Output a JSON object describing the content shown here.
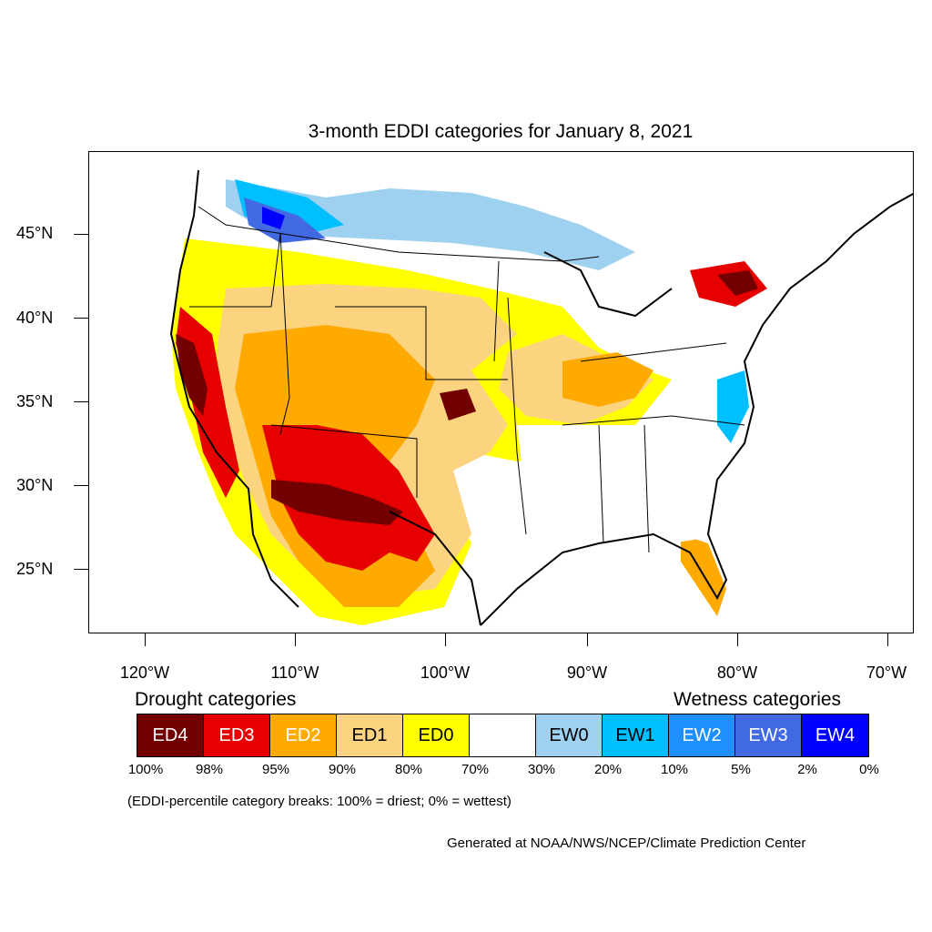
{
  "title": "3-month EDDI categories for January 8, 2021",
  "lat_labels": [
    "45°N",
    "40°N",
    "35°N",
    "30°N",
    "25°N"
  ],
  "lon_labels": [
    "120°W",
    "110°W",
    "100°W",
    "90°W",
    "80°W",
    "70°W"
  ],
  "drought_heading": "Drought categories",
  "wetness_heading": "Wetness categories",
  "legend": [
    {
      "label": "ED4",
      "color": "#730000",
      "text_color": "#ffffff"
    },
    {
      "label": "ED3",
      "color": "#e60000",
      "text_color": "#ffffff"
    },
    {
      "label": "ED2",
      "color": "#ffaa00",
      "text_color": "#ffffff"
    },
    {
      "label": "ED1",
      "color": "#fcd37f",
      "text_color": "#000000"
    },
    {
      "label": "ED0",
      "color": "#ffff00",
      "text_color": "#000000"
    },
    {
      "label": "",
      "color": "#ffffff",
      "text_color": "#000000"
    },
    {
      "label": "EW0",
      "color": "#9ed0f0",
      "text_color": "#000000"
    },
    {
      "label": "EW1",
      "color": "#00bfff",
      "text_color": "#000000"
    },
    {
      "label": "EW2",
      "color": "#1e90ff",
      "text_color": "#ffffff"
    },
    {
      "label": "EW3",
      "color": "#4169e1",
      "text_color": "#ffffff"
    },
    {
      "label": "EW4",
      "color": "#0000ff",
      "text_color": "#ffffff"
    }
  ],
  "percent_breaks": [
    "100%",
    "98%",
    "95%",
    "90%",
    "80%",
    "70%",
    "30%",
    "20%",
    "10%",
    "5%",
    "2%",
    "0%"
  ],
  "note": "(EDDI-percentile category breaks: 100% = driest; 0% = wettest)",
  "credit": "Generated at NOAA/NWS/NCEP/Climate Prediction Center"
}
